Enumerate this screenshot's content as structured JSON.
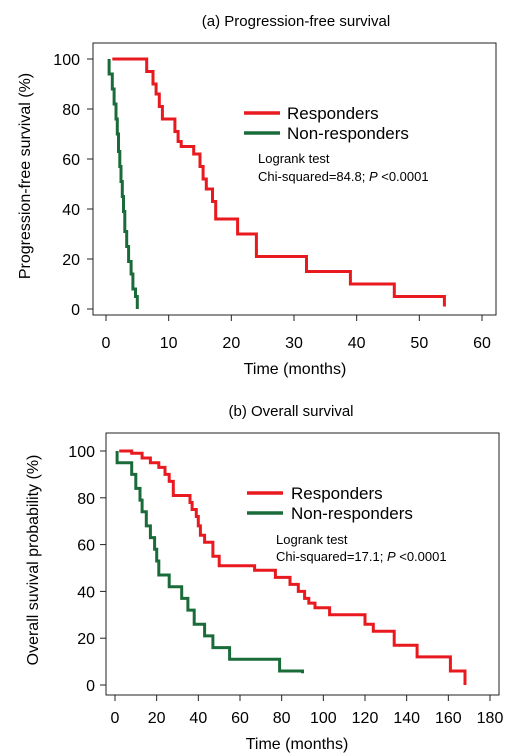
{
  "chart_data": [
    {
      "type": "line",
      "step": true,
      "title": "(a) Progression-free survival",
      "xlabel": "Time (months)",
      "ylabel": "Progression-free survival (%)",
      "xlim": [
        0,
        60
      ],
      "ylim": [
        0,
        100
      ],
      "xticks": [
        "0",
        "10",
        "20",
        "30",
        "40",
        "50",
        "60"
      ],
      "yticks": [
        "0",
        "20",
        "40",
        "60",
        "80",
        "100"
      ],
      "grid": false,
      "legend_position": "top-right",
      "annotation": {
        "line1": "Logrank test",
        "line2_prefix": "Chi-squared=84.8; ",
        "line2_p": "P",
        "line2_suffix": " <0.0001"
      },
      "series": [
        {
          "name": "Responders",
          "color": "#e8191f",
          "points": [
            [
              1,
              100
            ],
            [
              6.5,
              100
            ],
            [
              6.5,
              95
            ],
            [
              7.5,
              95
            ],
            [
              7.5,
              90
            ],
            [
              8,
              90
            ],
            [
              8,
              86
            ],
            [
              8.5,
              86
            ],
            [
              8.5,
              81
            ],
            [
              9,
              81
            ],
            [
              9,
              76
            ],
            [
              11,
              76
            ],
            [
              11,
              71
            ],
            [
              11.5,
              71
            ],
            [
              11.5,
              67
            ],
            [
              12,
              67
            ],
            [
              12,
              65
            ],
            [
              14,
              65
            ],
            [
              14,
              62
            ],
            [
              15,
              62
            ],
            [
              15,
              57
            ],
            [
              15.5,
              57
            ],
            [
              15.5,
              52
            ],
            [
              16,
              52
            ],
            [
              16,
              48
            ],
            [
              17,
              48
            ],
            [
              17,
              43
            ],
            [
              17.5,
              43
            ],
            [
              17.5,
              36
            ],
            [
              21,
              36
            ],
            [
              21,
              30
            ],
            [
              24,
              30
            ],
            [
              24,
              21
            ],
            [
              32,
              21
            ],
            [
              32,
              15
            ],
            [
              39,
              15
            ],
            [
              39,
              10
            ],
            [
              46,
              10
            ],
            [
              46,
              5
            ],
            [
              54,
              5
            ],
            [
              54,
              1
            ]
          ]
        },
        {
          "name": "Non-responders",
          "color": "#1a6b3a",
          "points": [
            [
              0.5,
              100
            ],
            [
              0.5,
              94
            ],
            [
              1,
              94
            ],
            [
              1,
              88
            ],
            [
              1.3,
              88
            ],
            [
              1.3,
              82
            ],
            [
              1.6,
              82
            ],
            [
              1.6,
              76
            ],
            [
              1.8,
              76
            ],
            [
              1.8,
              70
            ],
            [
              2,
              70
            ],
            [
              2,
              63
            ],
            [
              2.2,
              63
            ],
            [
              2.2,
              57
            ],
            [
              2.4,
              57
            ],
            [
              2.4,
              51
            ],
            [
              2.6,
              51
            ],
            [
              2.6,
              45
            ],
            [
              2.8,
              45
            ],
            [
              2.8,
              39
            ],
            [
              3,
              39
            ],
            [
              3,
              31
            ],
            [
              3.3,
              31
            ],
            [
              3.3,
              25
            ],
            [
              3.6,
              25
            ],
            [
              3.6,
              19
            ],
            [
              4,
              19
            ],
            [
              4,
              14
            ],
            [
              4.3,
              14
            ],
            [
              4.3,
              8
            ],
            [
              4.7,
              8
            ],
            [
              4.7,
              5
            ],
            [
              5,
              5
            ],
            [
              5,
              0
            ]
          ]
        }
      ]
    },
    {
      "type": "line",
      "step": true,
      "title": "(b) Overall survival",
      "xlabel": "Time (months)",
      "ylabel": "Overall suvival probability (%)",
      "xlim": [
        0,
        180
      ],
      "ylim": [
        0,
        100
      ],
      "xticks": [
        "0",
        "20",
        "40",
        "60",
        "80",
        "100",
        "120",
        "140",
        "160",
        "180"
      ],
      "yticks": [
        "0",
        "20",
        "40",
        "60",
        "80",
        "100"
      ],
      "grid": false,
      "legend_position": "top-right",
      "annotation": {
        "line1": "Logrank test",
        "line2_prefix": "Chi-squared=17.1; ",
        "line2_p": "P",
        "line2_suffix": " <0.0001"
      },
      "series": [
        {
          "name": "Responders",
          "color": "#e8191f",
          "points": [
            [
              2,
              100
            ],
            [
              8,
              100
            ],
            [
              8,
              99
            ],
            [
              13,
              99
            ],
            [
              13,
              97
            ],
            [
              17,
              97
            ],
            [
              17,
              95
            ],
            [
              21,
              95
            ],
            [
              21,
              93
            ],
            [
              24,
              93
            ],
            [
              24,
              90
            ],
            [
              26,
              90
            ],
            [
              26,
              87
            ],
            [
              28,
              87
            ],
            [
              28,
              81
            ],
            [
              36,
              81
            ],
            [
              36,
              78
            ],
            [
              37,
              78
            ],
            [
              37,
              75
            ],
            [
              39,
              75
            ],
            [
              39,
              72
            ],
            [
              40,
              72
            ],
            [
              40,
              68
            ],
            [
              41,
              68
            ],
            [
              41,
              64
            ],
            [
              43,
              64
            ],
            [
              43,
              61
            ],
            [
              47,
              61
            ],
            [
              47,
              55
            ],
            [
              50,
              55
            ],
            [
              50,
              51
            ],
            [
              67,
              51
            ],
            [
              67,
              49
            ],
            [
              77,
              49
            ],
            [
              77,
              46
            ],
            [
              84,
              46
            ],
            [
              84,
              43
            ],
            [
              88,
              43
            ],
            [
              88,
              40
            ],
            [
              91,
              40
            ],
            [
              91,
              37
            ],
            [
              93,
              37
            ],
            [
              93,
              35
            ],
            [
              96,
              35
            ],
            [
              96,
              33
            ],
            [
              103,
              33
            ],
            [
              103,
              30
            ],
            [
              120,
              30
            ],
            [
              120,
              26
            ],
            [
              124,
              26
            ],
            [
              124,
              23
            ],
            [
              134,
              23
            ],
            [
              134,
              17
            ],
            [
              145,
              17
            ],
            [
              145,
              12
            ],
            [
              161,
              12
            ],
            [
              161,
              6
            ],
            [
              168,
              6
            ],
            [
              168,
              0
            ]
          ]
        },
        {
          "name": "Non-responders",
          "color": "#1a6b3a",
          "points": [
            [
              1,
              100
            ],
            [
              1,
              95
            ],
            [
              8,
              95
            ],
            [
              8,
              90
            ],
            [
              10,
              90
            ],
            [
              10,
              84
            ],
            [
              12,
              84
            ],
            [
              12,
              79
            ],
            [
              13,
              79
            ],
            [
              13,
              74
            ],
            [
              15,
              74
            ],
            [
              15,
              68
            ],
            [
              17,
              68
            ],
            [
              17,
              63
            ],
            [
              19,
              63
            ],
            [
              19,
              58
            ],
            [
              20,
              58
            ],
            [
              20,
              53
            ],
            [
              21,
              53
            ],
            [
              21,
              47
            ],
            [
              26,
              47
            ],
            [
              26,
              42
            ],
            [
              32,
              42
            ],
            [
              32,
              37
            ],
            [
              35,
              37
            ],
            [
              35,
              32
            ],
            [
              38,
              32
            ],
            [
              38,
              26
            ],
            [
              43,
              26
            ],
            [
              43,
              21
            ],
            [
              47,
              21
            ],
            [
              47,
              16
            ],
            [
              55,
              16
            ],
            [
              55,
              11
            ],
            [
              79,
              11
            ],
            [
              79,
              6
            ],
            [
              90,
              6
            ],
            [
              90,
              5
            ]
          ]
        }
      ]
    }
  ]
}
